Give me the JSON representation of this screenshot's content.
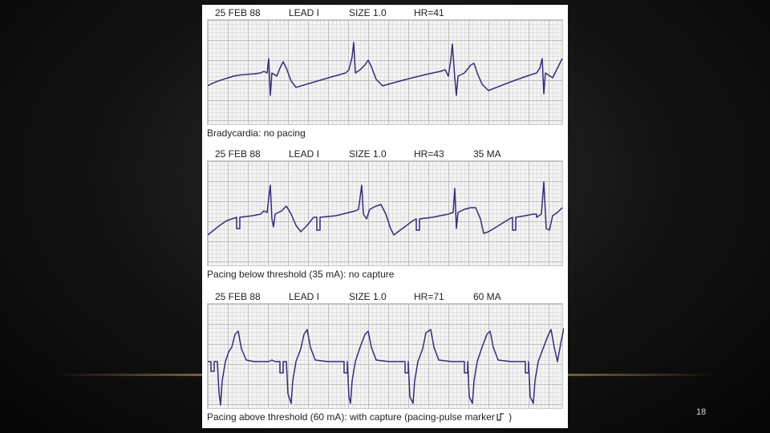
{
  "panels": [
    {
      "date": "25 FEB 88",
      "lead": "LEAD I",
      "size": "SIZE 1.0",
      "hr": "HR=41",
      "ma": "",
      "caption": "Bradycardia: no pacing"
    },
    {
      "date": "25 FEB 88",
      "lead": "LEAD I",
      "size": "SIZE 1.0",
      "hr": "HR=43",
      "ma": "35 MA",
      "caption": "Pacing below threshold (35 mA): no capture"
    },
    {
      "date": "25 FEB 88",
      "lead": "LEAD I",
      "size": "SIZE 1.0",
      "hr": "HR=71",
      "ma": "60 MA",
      "caption": "Pacing above threshold (60 mA): with capture (pacing-pulse marker",
      "caption_suffix": " )"
    }
  ],
  "slide_number": "18",
  "colors": {
    "trace": "#3a2a78",
    "background": "#000000",
    "accent_line": "#8a6a3a"
  }
}
